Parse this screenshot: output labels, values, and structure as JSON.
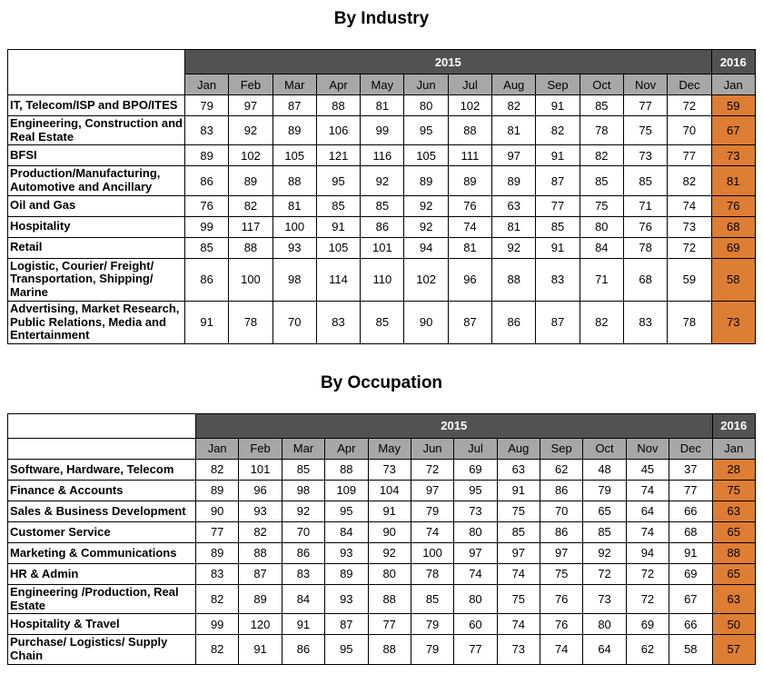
{
  "colors": {
    "header_dark": "#525252",
    "header_light": "#A7A7A7",
    "accent_orange": "#DE7D34",
    "border": "#000000"
  },
  "columns": {
    "year_2015": "2015",
    "year_2016": "2016",
    "months": [
      "Jan",
      "Feb",
      "Mar",
      "Apr",
      "May",
      "Jun",
      "Jul",
      "Aug",
      "Sep",
      "Oct",
      "Nov",
      "Dec"
    ],
    "month_2016": "Jan"
  },
  "industry": {
    "title": "By Industry",
    "rows": [
      {
        "label": "IT, Telecom/ISP and BPO/ITES",
        "values_2015": [
          79,
          97,
          87,
          88,
          81,
          80,
          102,
          82,
          91,
          85,
          77,
          72
        ],
        "value_2016": 59
      },
      {
        "label": "Engineering, Construction and Real Estate",
        "values_2015": [
          83,
          92,
          89,
          106,
          99,
          95,
          88,
          81,
          82,
          78,
          75,
          70
        ],
        "value_2016": 67
      },
      {
        "label": "BFSI",
        "values_2015": [
          89,
          102,
          105,
          121,
          116,
          105,
          111,
          97,
          91,
          82,
          73,
          77
        ],
        "value_2016": 73
      },
      {
        "label": "Production/Manufacturing, Automotive and Ancillary",
        "values_2015": [
          86,
          89,
          88,
          95,
          92,
          89,
          89,
          89,
          87,
          85,
          85,
          82
        ],
        "value_2016": 81
      },
      {
        "label": "Oil and Gas",
        "values_2015": [
          76,
          82,
          81,
          85,
          85,
          92,
          76,
          63,
          77,
          75,
          71,
          74
        ],
        "value_2016": 76
      },
      {
        "label": "Hospitality",
        "values_2015": [
          99,
          117,
          100,
          91,
          86,
          92,
          74,
          81,
          85,
          80,
          76,
          73
        ],
        "value_2016": 68
      },
      {
        "label": "Retail",
        "values_2015": [
          85,
          88,
          93,
          105,
          101,
          94,
          81,
          92,
          91,
          84,
          78,
          72
        ],
        "value_2016": 69
      },
      {
        "label": "Logistic, Courier/ Freight/ Transportation, Shipping/ Marine",
        "values_2015": [
          86,
          100,
          98,
          114,
          110,
          102,
          96,
          88,
          83,
          71,
          68,
          59
        ],
        "value_2016": 58
      },
      {
        "label": "Advertising, Market Research, Public Relations, Media and Entertainment",
        "values_2015": [
          91,
          78,
          70,
          83,
          85,
          90,
          87,
          86,
          87,
          82,
          83,
          78
        ],
        "value_2016": 73
      }
    ]
  },
  "occupation": {
    "title": "By Occupation",
    "rows": [
      {
        "label": "Software, Hardware, Telecom",
        "values_2015": [
          82,
          101,
          85,
          88,
          73,
          72,
          69,
          63,
          62,
          48,
          45,
          37
        ],
        "value_2016": 28
      },
      {
        "label": "Finance & Accounts",
        "values_2015": [
          89,
          96,
          98,
          109,
          104,
          97,
          95,
          91,
          86,
          79,
          74,
          77
        ],
        "value_2016": 75
      },
      {
        "label": "Sales & Business Development",
        "values_2015": [
          90,
          93,
          92,
          95,
          91,
          79,
          73,
          75,
          70,
          65,
          64,
          66
        ],
        "value_2016": 63
      },
      {
        "label": "Customer Service",
        "values_2015": [
          77,
          82,
          70,
          84,
          90,
          74,
          80,
          85,
          86,
          85,
          74,
          68
        ],
        "value_2016": 65
      },
      {
        "label": "Marketing & Communications",
        "values_2015": [
          89,
          88,
          86,
          93,
          92,
          100,
          97,
          97,
          97,
          92,
          94,
          91
        ],
        "value_2016": 88
      },
      {
        "label": "HR & Admin",
        "values_2015": [
          83,
          87,
          83,
          89,
          80,
          78,
          74,
          74,
          75,
          72,
          72,
          69
        ],
        "value_2016": 65
      },
      {
        "label": "Engineering /Production, Real Estate",
        "values_2015": [
          82,
          89,
          84,
          93,
          88,
          85,
          80,
          75,
          76,
          73,
          72,
          67
        ],
        "value_2016": 63
      },
      {
        "label": "Hospitality & Travel",
        "values_2015": [
          99,
          120,
          91,
          87,
          77,
          79,
          60,
          74,
          76,
          80,
          69,
          66
        ],
        "value_2016": 50
      },
      {
        "label": "Purchase/ Logistics/ Supply Chain",
        "values_2015": [
          82,
          91,
          86,
          95,
          88,
          79,
          77,
          73,
          74,
          64,
          62,
          58
        ],
        "value_2016": 57
      }
    ]
  }
}
